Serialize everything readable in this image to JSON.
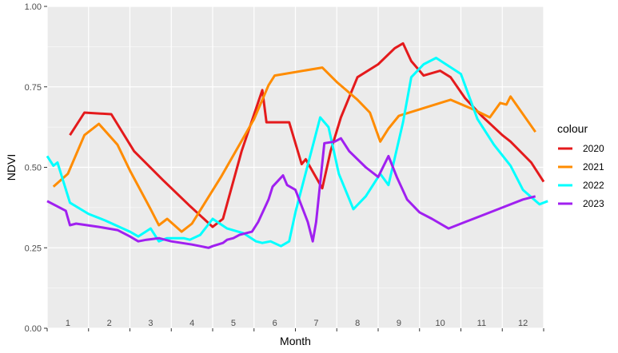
{
  "chart_data": {
    "type": "line",
    "title": "",
    "xlabel": "Month",
    "ylabel": "NDVI",
    "x_tick_labels": [
      "1",
      "2",
      "3",
      "4",
      "5",
      "6",
      "7",
      "8",
      "9",
      "10",
      "11",
      "12"
    ],
    "y_tick_labels": [
      "0.00",
      "0.25",
      "0.50",
      "0.75",
      "1.00"
    ],
    "xlim": [
      0.5,
      12.5
    ],
    "ylim": [
      0,
      1
    ],
    "grid": true,
    "legend_title": "colour",
    "legend_position": "right",
    "series": [
      {
        "name": "2020",
        "color": "#e41a1c",
        "points": [
          [
            1.05,
            0.6
          ],
          [
            1.4,
            0.67
          ],
          [
            2.05,
            0.665
          ],
          [
            2.6,
            0.55
          ],
          [
            3.3,
            0.46
          ],
          [
            3.95,
            0.38
          ],
          [
            4.5,
            0.315
          ],
          [
            4.75,
            0.34
          ],
          [
            5.2,
            0.55
          ],
          [
            5.7,
            0.74
          ],
          [
            5.8,
            0.64
          ],
          [
            6.15,
            0.64
          ],
          [
            6.35,
            0.64
          ],
          [
            6.65,
            0.51
          ],
          [
            6.75,
            0.525
          ],
          [
            7.15,
            0.435
          ],
          [
            7.35,
            0.55
          ],
          [
            7.6,
            0.655
          ],
          [
            8.0,
            0.78
          ],
          [
            8.5,
            0.82
          ],
          [
            8.9,
            0.87
          ],
          [
            9.1,
            0.885
          ],
          [
            9.3,
            0.83
          ],
          [
            9.6,
            0.785
          ],
          [
            10.0,
            0.8
          ],
          [
            10.25,
            0.78
          ],
          [
            10.6,
            0.715
          ],
          [
            11.0,
            0.66
          ],
          [
            11.5,
            0.6
          ],
          [
            11.7,
            0.58
          ],
          [
            12.2,
            0.515
          ],
          [
            12.5,
            0.455
          ]
        ]
      },
      {
        "name": "2021",
        "color": "#ff8c00",
        "points": [
          [
            0.65,
            0.44
          ],
          [
            1.0,
            0.48
          ],
          [
            1.4,
            0.6
          ],
          [
            1.75,
            0.635
          ],
          [
            2.2,
            0.57
          ],
          [
            2.5,
            0.49
          ],
          [
            3.0,
            0.37
          ],
          [
            3.2,
            0.32
          ],
          [
            3.4,
            0.34
          ],
          [
            3.75,
            0.3
          ],
          [
            4.0,
            0.325
          ],
          [
            4.7,
            0.47
          ],
          [
            5.5,
            0.65
          ],
          [
            5.85,
            0.755
          ],
          [
            6.0,
            0.785
          ],
          [
            7.15,
            0.81
          ],
          [
            7.5,
            0.765
          ],
          [
            8.0,
            0.71
          ],
          [
            8.3,
            0.67
          ],
          [
            8.55,
            0.58
          ],
          [
            8.75,
            0.62
          ],
          [
            9.0,
            0.66
          ],
          [
            10.25,
            0.71
          ],
          [
            10.8,
            0.68
          ],
          [
            11.2,
            0.655
          ],
          [
            11.45,
            0.7
          ],
          [
            11.6,
            0.695
          ],
          [
            11.7,
            0.72
          ],
          [
            12.3,
            0.61
          ]
        ]
      },
      {
        "name": "2022",
        "color": "#00ffff",
        "points": [
          [
            0.5,
            0.535
          ],
          [
            0.65,
            0.505
          ],
          [
            0.75,
            0.515
          ],
          [
            1.05,
            0.39
          ],
          [
            1.5,
            0.355
          ],
          [
            1.9,
            0.335
          ],
          [
            2.5,
            0.3
          ],
          [
            2.7,
            0.285
          ],
          [
            3.0,
            0.31
          ],
          [
            3.2,
            0.27
          ],
          [
            3.4,
            0.28
          ],
          [
            3.8,
            0.28
          ],
          [
            3.95,
            0.275
          ],
          [
            4.2,
            0.29
          ],
          [
            4.5,
            0.34
          ],
          [
            4.85,
            0.31
          ],
          [
            5.25,
            0.295
          ],
          [
            5.55,
            0.27
          ],
          [
            5.7,
            0.265
          ],
          [
            5.9,
            0.27
          ],
          [
            6.15,
            0.255
          ],
          [
            6.35,
            0.27
          ],
          [
            6.5,
            0.36
          ],
          [
            7.1,
            0.655
          ],
          [
            7.3,
            0.625
          ],
          [
            7.55,
            0.48
          ],
          [
            7.9,
            0.37
          ],
          [
            8.2,
            0.41
          ],
          [
            8.55,
            0.48
          ],
          [
            8.75,
            0.445
          ],
          [
            9.1,
            0.64
          ],
          [
            9.3,
            0.78
          ],
          [
            9.6,
            0.82
          ],
          [
            9.9,
            0.84
          ],
          [
            10.5,
            0.79
          ],
          [
            10.9,
            0.65
          ],
          [
            11.3,
            0.57
          ],
          [
            11.7,
            0.505
          ],
          [
            12.0,
            0.43
          ],
          [
            12.4,
            0.385
          ],
          [
            12.6,
            0.395
          ]
        ]
      },
      {
        "name": "2023",
        "color": "#a020f0",
        "points": [
          [
            0.5,
            0.395
          ],
          [
            0.95,
            0.365
          ],
          [
            1.05,
            0.32
          ],
          [
            1.2,
            0.325
          ],
          [
            1.75,
            0.315
          ],
          [
            2.2,
            0.305
          ],
          [
            2.5,
            0.285
          ],
          [
            2.7,
            0.27
          ],
          [
            2.9,
            0.275
          ],
          [
            3.2,
            0.28
          ],
          [
            3.5,
            0.27
          ],
          [
            4.0,
            0.26
          ],
          [
            4.4,
            0.25
          ],
          [
            4.5,
            0.255
          ],
          [
            4.75,
            0.265
          ],
          [
            4.85,
            0.275
          ],
          [
            5.0,
            0.28
          ],
          [
            5.15,
            0.29
          ],
          [
            5.45,
            0.3
          ],
          [
            5.6,
            0.33
          ],
          [
            5.85,
            0.4
          ],
          [
            5.95,
            0.44
          ],
          [
            6.2,
            0.475
          ],
          [
            6.3,
            0.445
          ],
          [
            6.5,
            0.43
          ],
          [
            6.8,
            0.33
          ],
          [
            6.92,
            0.27
          ],
          [
            7.0,
            0.33
          ],
          [
            7.2,
            0.575
          ],
          [
            7.45,
            0.58
          ],
          [
            7.6,
            0.59
          ],
          [
            7.8,
            0.55
          ],
          [
            8.2,
            0.5
          ],
          [
            8.5,
            0.47
          ],
          [
            8.75,
            0.535
          ],
          [
            8.95,
            0.47
          ],
          [
            9.2,
            0.4
          ],
          [
            9.5,
            0.36
          ],
          [
            9.8,
            0.34
          ],
          [
            10.2,
            0.31
          ],
          [
            10.6,
            0.33
          ],
          [
            11.0,
            0.35
          ],
          [
            11.5,
            0.375
          ],
          [
            12.0,
            0.4
          ],
          [
            12.3,
            0.41
          ]
        ]
      }
    ]
  }
}
